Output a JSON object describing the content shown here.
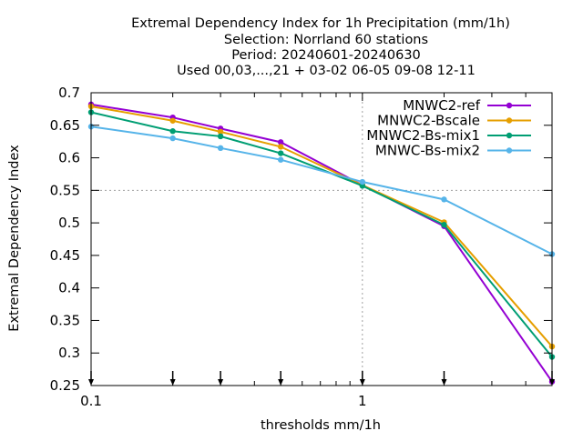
{
  "chart_data": {
    "type": "line",
    "title_lines": [
      "Extremal Dependency Index  for 1h Precipitation (mm/1h)",
      "Selection: Norrland     60 stations",
      "Period: 20240601-20240630",
      "Used 00,03,...,21 + 03-02 06-05 09-08 12-11"
    ],
    "xlabel": "thresholds mm/1h",
    "ylabel": "Extremal Dependency Index",
    "x_scale": "log",
    "xlim": [
      0.1,
      5
    ],
    "ylim": [
      0.25,
      0.7
    ],
    "x_ticks": [
      {
        "value": 0.1,
        "label": "0.1"
      },
      {
        "value": 1,
        "label": "1"
      }
    ],
    "x_minor_ticks": [
      0.2,
      0.3,
      0.4,
      0.5,
      0.6,
      0.7,
      0.8,
      0.9,
      2,
      3,
      4,
      5
    ],
    "y_ticks": [
      {
        "value": 0.25,
        "label": "0.25"
      },
      {
        "value": 0.3,
        "label": "0.3"
      },
      {
        "value": 0.35,
        "label": "0.35"
      },
      {
        "value": 0.4,
        "label": "0.4"
      },
      {
        "value": 0.45,
        "label": "0.45"
      },
      {
        "value": 0.5,
        "label": "0.5"
      },
      {
        "value": 0.55,
        "label": "0.55"
      },
      {
        "value": 0.6,
        "label": "0.6"
      },
      {
        "value": 0.65,
        "label": "0.65"
      },
      {
        "value": 0.7,
        "label": "0.7"
      }
    ],
    "grid": "x=1 and y=0.55 only",
    "legend_position": "top-right",
    "threshold_markers": [
      0.1,
      0.2,
      0.3,
      0.5,
      1,
      2,
      5
    ],
    "x": [
      0.1,
      0.2,
      0.3,
      0.5,
      1,
      2,
      5
    ],
    "series": [
      {
        "name": "MNWC2-ref",
        "color": "#9400d3",
        "values": [
          0.682,
          0.662,
          0.645,
          0.624,
          0.558,
          0.495,
          0.256
        ]
      },
      {
        "name": "MNWC2-Bscale",
        "color": "#e69f00",
        "values": [
          0.679,
          0.657,
          0.64,
          0.617,
          0.558,
          0.501,
          0.31
        ]
      },
      {
        "name": "MNWC2-Bs-mix1",
        "color": "#009e73",
        "values": [
          0.67,
          0.641,
          0.633,
          0.607,
          0.557,
          0.497,
          0.294
        ]
      },
      {
        "name": "MNWC-Bs-mix2",
        "color": "#56b4e9",
        "values": [
          0.648,
          0.63,
          0.615,
          0.597,
          0.563,
          0.536,
          0.452
        ]
      }
    ]
  }
}
